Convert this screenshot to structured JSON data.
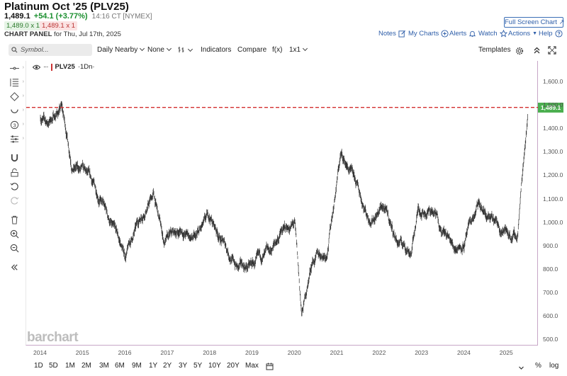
{
  "header": {
    "title": "Platinum Oct '25 (PLV25)",
    "last": "1,489.1",
    "change": "+54.1 (+3.77%)",
    "time": "14:16 CT [NYMEX]",
    "bid": "1,489.0 x 1",
    "ask": "1,489.1 x 1",
    "panel_label": "CHART PANEL",
    "panel_date": "for Thu, Jul 17th, 2025",
    "fullscreen": "Full Screen Chart",
    "links": [
      "Notes",
      "My Charts",
      "Alerts",
      "Watch",
      "Actions",
      "Help"
    ]
  },
  "toolbar": {
    "search_placeholder": "Symbol...",
    "items": [
      "Daily Nearby",
      "None",
      "Indicators",
      "Compare",
      "f(x)",
      "1x1",
      "Templates"
    ]
  },
  "legend": {
    "symbol": "PLV25",
    "interval": "·1Dn·"
  },
  "watermark": "barchart",
  "price_tag": "1,489.1",
  "y_ticks": [
    "1,600.0",
    "1,500.0",
    "1,400.0",
    "1,300.0",
    "1,200.0",
    "1,100.0",
    "1,000.0",
    "900.0",
    "800.0",
    "700.0",
    "600.0",
    "500.0"
  ],
  "x_ticks": [
    "2014",
    "2015",
    "2016",
    "2017",
    "2018",
    "2019",
    "2020",
    "2021",
    "2022",
    "2023",
    "2024",
    "2025"
  ],
  "ranges": [
    "1D",
    "5D",
    "1M",
    "2M",
    "3M",
    "6M",
    "9M",
    "1Y",
    "2Y",
    "3Y",
    "5Y",
    "10Y",
    "20Y",
    "Max"
  ],
  "scale_buttons": [
    "%",
    "log"
  ],
  "colors": {
    "last_line": "#d32f2f",
    "price_tag": "#4caf50",
    "up": "#1a8f2e",
    "bars": "#333333"
  },
  "chart_data": {
    "type": "line",
    "title": "Platinum Oct '25 (PLV25)",
    "ylim": [
      500,
      1650
    ],
    "last_price": 1489.1,
    "x": [
      "2014-01",
      "2014-03",
      "2014-07",
      "2014-10",
      "2015-01",
      "2015-06",
      "2015-10",
      "2016-01",
      "2016-06",
      "2016-09",
      "2016-12",
      "2017-05",
      "2017-09",
      "2018-01",
      "2018-06",
      "2018-09",
      "2019-01",
      "2019-06",
      "2019-09",
      "2020-01",
      "2020-03",
      "2020-06",
      "2020-10",
      "2021-02",
      "2021-05",
      "2021-10",
      "2022-02",
      "2022-06",
      "2022-10",
      "2022-12",
      "2023-04",
      "2023-10",
      "2024-01",
      "2024-05",
      "2024-10",
      "2025-01",
      "2025-04",
      "2025-06",
      "2025-07"
    ],
    "series": [
      {
        "values": [
          1450,
          1420,
          1490,
          1250,
          1210,
          1100,
          950,
          850,
          1040,
          1120,
          910,
          960,
          920,
          1010,
          880,
          800,
          810,
          850,
          950,
          990,
          590,
          840,
          870,
          1290,
          1200,
          1020,
          1070,
          920,
          880,
          1060,
          1050,
          890,
          920,
          1060,
          980,
          960,
          930,
          1300,
          1480
        ]
      }
    ]
  }
}
